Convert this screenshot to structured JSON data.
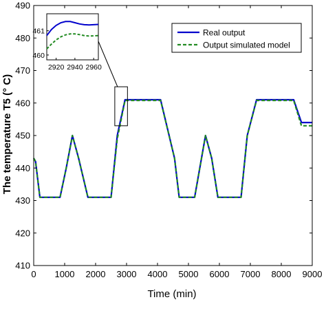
{
  "chart_data": {
    "type": "line",
    "xlabel": "Time (min)",
    "ylabel": "The temperature T5 (° C)",
    "xlim": [
      0,
      9000
    ],
    "ylim": [
      410,
      490
    ],
    "xticks": [
      "0",
      "1000",
      "2000",
      "3000",
      "4000",
      "5000",
      "6000",
      "7000",
      "8000",
      "9000"
    ],
    "yticks": [
      "410",
      "420",
      "430",
      "440",
      "450",
      "460",
      "470",
      "480",
      "490"
    ],
    "grid": false,
    "legend_position": "top-right",
    "colors": {
      "real": "#0000cc",
      "sim": "#228b22"
    },
    "series": [
      {
        "name": "Real output",
        "style": "solid",
        "x": [
          0,
          60,
          200,
          680,
          850,
          1050,
          1250,
          1450,
          1750,
          2200,
          2500,
          2700,
          2950,
          3150,
          4100,
          4550,
          4700,
          5200,
          5550,
          5750,
          5950,
          6200,
          6700,
          6900,
          7200,
          7450,
          8400,
          8650,
          9000
        ],
        "y": [
          443,
          442,
          431,
          431,
          431,
          440,
          450,
          443,
          431,
          431,
          431,
          450,
          461,
          461,
          461,
          443,
          431,
          431,
          450,
          443,
          431,
          431,
          431,
          450,
          461,
          461,
          461,
          454,
          454
        ]
      },
      {
        "name": "Output simulated model",
        "style": "dashed",
        "x": [
          0,
          60,
          200,
          680,
          850,
          1050,
          1250,
          1450,
          1750,
          2200,
          2500,
          2700,
          2950,
          3150,
          4100,
          4550,
          4700,
          5200,
          5550,
          5750,
          5950,
          6200,
          6700,
          6900,
          7200,
          7450,
          8400,
          8650,
          9000
        ],
        "y": [
          443,
          442,
          431,
          431,
          431,
          440,
          450,
          443,
          431,
          431,
          431,
          449,
          460.8,
          460.8,
          460.8,
          443,
          431,
          431,
          450,
          443,
          431,
          431,
          431,
          450,
          460.8,
          460.8,
          460.8,
          453,
          453
        ]
      }
    ],
    "inset": {
      "xlim": [
        2910,
        2965
      ],
      "ylim": [
        459.8,
        461.7
      ],
      "xticks": [
        "2920",
        "2940",
        "2960"
      ],
      "yticks": [
        "460",
        "461"
      ],
      "zoom_box_x": [
        2620,
        3030
      ],
      "zoom_box_y": [
        453,
        465
      ],
      "series": [
        {
          "x": [
            2910,
            2915,
            2920,
            2925,
            2930,
            2935,
            2940,
            2945,
            2950,
            2955,
            2960,
            2965
          ],
          "y": [
            460.8,
            461.05,
            461.22,
            461.33,
            461.38,
            461.38,
            461.33,
            461.28,
            461.25,
            461.24,
            461.25,
            461.26
          ]
        },
        {
          "x": [
            2910,
            2915,
            2920,
            2925,
            2930,
            2935,
            2940,
            2945,
            2950,
            2955,
            2960,
            2965
          ],
          "y": [
            460.25,
            460.45,
            460.62,
            460.75,
            460.83,
            460.87,
            460.87,
            460.84,
            460.8,
            460.78,
            460.79,
            460.8
          ]
        }
      ]
    }
  }
}
